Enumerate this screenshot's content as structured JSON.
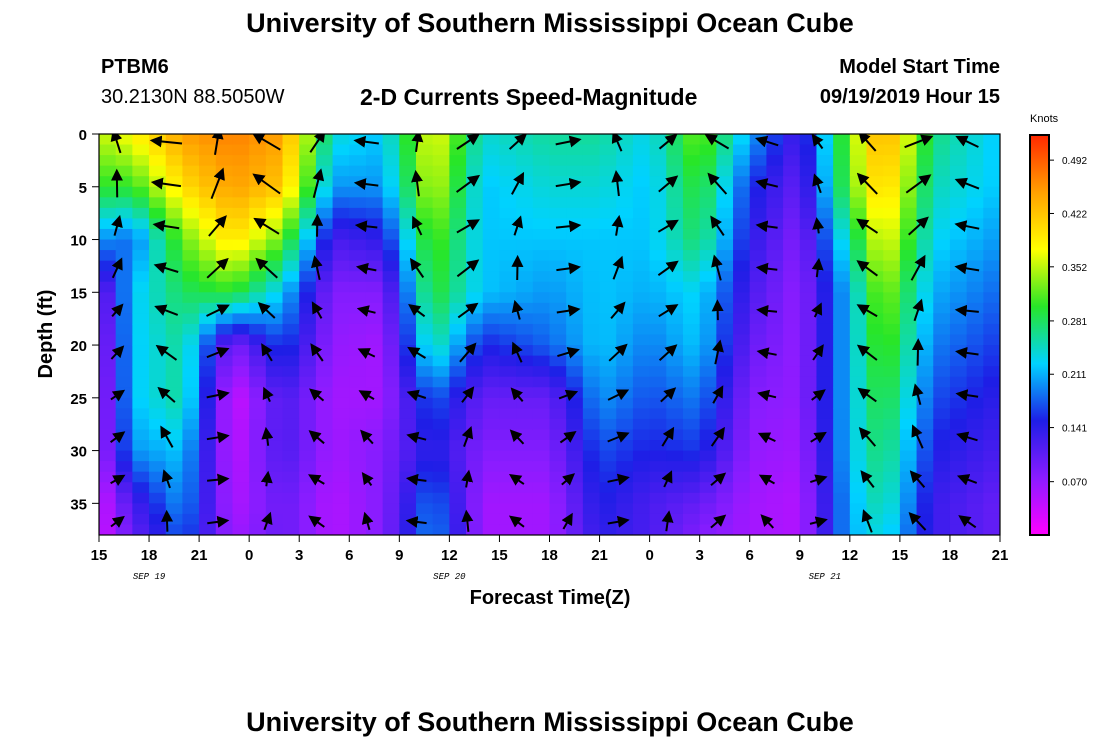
{
  "header": {
    "title": "University of Southern Mississippi Ocean Cube",
    "station": "PTBM6",
    "coords": "30.2130N 88.5050W",
    "subtitle": "2-D Currents Speed-Magnitude",
    "model_start_label": "Model Start Time",
    "model_start_time": "09/19/2019 Hour 15"
  },
  "footer": {
    "title": "University of Southern Mississippi Ocean Cube"
  },
  "colorbar": {
    "units": "Knots",
    "tick_labels": [
      "0.492",
      "0.422",
      "0.352",
      "0.281",
      "0.211",
      "0.141",
      "0.070"
    ],
    "tick_values": [
      0.492,
      0.422,
      0.352,
      0.281,
      0.211,
      0.141,
      0.07
    ],
    "range": [
      0.0,
      0.525
    ],
    "colors": [
      "#ff00ff",
      "#8a1cff",
      "#1e1ee6",
      "#00d2ff",
      "#28e628",
      "#ffff00",
      "#ffa000",
      "#ff2800"
    ]
  },
  "chart_data": {
    "type": "heatmap",
    "xlabel": "Forecast Time(Z)",
    "ylabel": "Depth (ft)",
    "x_ticks": [
      "15",
      "18",
      "21",
      "0",
      "3",
      "6",
      "9",
      "12",
      "15",
      "18",
      "21",
      "0",
      "3",
      "6",
      "9",
      "12",
      "15",
      "18",
      "21"
    ],
    "x_tick_hours": [
      0,
      3,
      6,
      9,
      12,
      15,
      18,
      21,
      24,
      27,
      30,
      33,
      36,
      39,
      42,
      45,
      48,
      51,
      54
    ],
    "date_labels": [
      {
        "label": "SEP 19",
        "hour": 3
      },
      {
        "label": "SEP 20",
        "hour": 21
      },
      {
        "label": "SEP 21",
        "hour": 43.5
      }
    ],
    "y_ticks": [
      "0",
      "5",
      "10",
      "15",
      "20",
      "25",
      "30",
      "35"
    ],
    "y_tick_values": [
      0,
      5,
      10,
      15,
      20,
      25,
      30,
      35
    ],
    "xlim": [
      0,
      54
    ],
    "ylim": [
      0,
      38
    ],
    "y_inverted": true,
    "speed_knots_by_hour_and_depth": {
      "depths_ft": [
        0,
        5,
        10,
        15,
        20,
        25,
        30,
        35,
        38
      ],
      "rows": [
        {
          "hour": 0,
          "speeds": [
            0.35,
            0.3,
            0.2,
            0.08,
            0.06,
            0.05,
            0.05,
            0.03,
            0.03
          ]
        },
        {
          "hour": 2,
          "speeds": [
            0.38,
            0.3,
            0.18,
            0.22,
            0.22,
            0.22,
            0.2,
            0.12,
            0.1
          ]
        },
        {
          "hour": 5,
          "speeds": [
            0.45,
            0.4,
            0.32,
            0.28,
            0.26,
            0.26,
            0.22,
            0.2,
            0.18
          ]
        },
        {
          "hour": 8,
          "speeds": [
            0.47,
            0.45,
            0.4,
            0.3,
            0.08,
            0.03,
            0.04,
            0.05,
            0.06
          ]
        },
        {
          "hour": 11,
          "speeds": [
            0.45,
            0.42,
            0.32,
            0.22,
            0.17,
            0.12,
            0.12,
            0.1,
            0.1
          ]
        },
        {
          "hour": 14,
          "speeds": [
            0.24,
            0.2,
            0.12,
            0.08,
            0.07,
            0.06,
            0.06,
            0.05,
            0.05
          ]
        },
        {
          "hour": 17,
          "speeds": [
            0.22,
            0.2,
            0.14,
            0.08,
            0.06,
            0.06,
            0.08,
            0.08,
            0.08
          ]
        },
        {
          "hour": 20,
          "speeds": [
            0.38,
            0.36,
            0.32,
            0.3,
            0.26,
            0.18,
            0.15,
            0.19,
            0.2
          ]
        },
        {
          "hour": 23,
          "speeds": [
            0.24,
            0.22,
            0.22,
            0.22,
            0.15,
            0.1,
            0.08,
            0.06,
            0.06
          ]
        },
        {
          "hour": 27,
          "speeds": [
            0.26,
            0.24,
            0.22,
            0.2,
            0.18,
            0.1,
            0.08,
            0.06,
            0.06
          ]
        },
        {
          "hour": 30,
          "speeds": [
            0.26,
            0.24,
            0.22,
            0.22,
            0.22,
            0.2,
            0.17,
            0.15,
            0.14
          ]
        },
        {
          "hour": 33,
          "speeds": [
            0.23,
            0.22,
            0.22,
            0.21,
            0.19,
            0.17,
            0.15,
            0.12,
            0.12
          ]
        },
        {
          "hour": 36,
          "speeds": [
            0.33,
            0.3,
            0.28,
            0.23,
            0.22,
            0.19,
            0.16,
            0.1,
            0.08
          ]
        },
        {
          "hour": 39,
          "speeds": [
            0.21,
            0.16,
            0.14,
            0.12,
            0.1,
            0.08,
            0.07,
            0.06,
            0.06
          ]
        },
        {
          "hour": 42,
          "speeds": [
            0.12,
            0.1,
            0.08,
            0.07,
            0.07,
            0.07,
            0.06,
            0.05,
            0.05
          ]
        },
        {
          "hour": 45,
          "speeds": [
            0.33,
            0.32,
            0.26,
            0.22,
            0.22,
            0.22,
            0.22,
            0.21,
            0.21
          ]
        },
        {
          "hour": 47,
          "speeds": [
            0.45,
            0.42,
            0.38,
            0.34,
            0.32,
            0.3,
            0.28,
            0.26,
            0.24
          ]
        },
        {
          "hour": 50,
          "speeds": [
            0.27,
            0.25,
            0.23,
            0.21,
            0.19,
            0.17,
            0.15,
            0.13,
            0.13
          ]
        },
        {
          "hour": 54,
          "speeds": [
            0.22,
            0.22,
            0.2,
            0.18,
            0.16,
            0.14,
            0.12,
            0.1,
            0.1
          ]
        }
      ]
    },
    "vectors_direction_deg_from_north": {
      "note_hours": [
        0,
        3,
        6,
        9,
        12,
        15,
        18,
        21,
        24,
        27,
        30,
        33,
        36,
        39,
        42,
        45,
        48,
        51,
        54
      ],
      "depths_ft": [
        0,
        4,
        8,
        12,
        16,
        20,
        24,
        28,
        32,
        36
      ]
    }
  }
}
